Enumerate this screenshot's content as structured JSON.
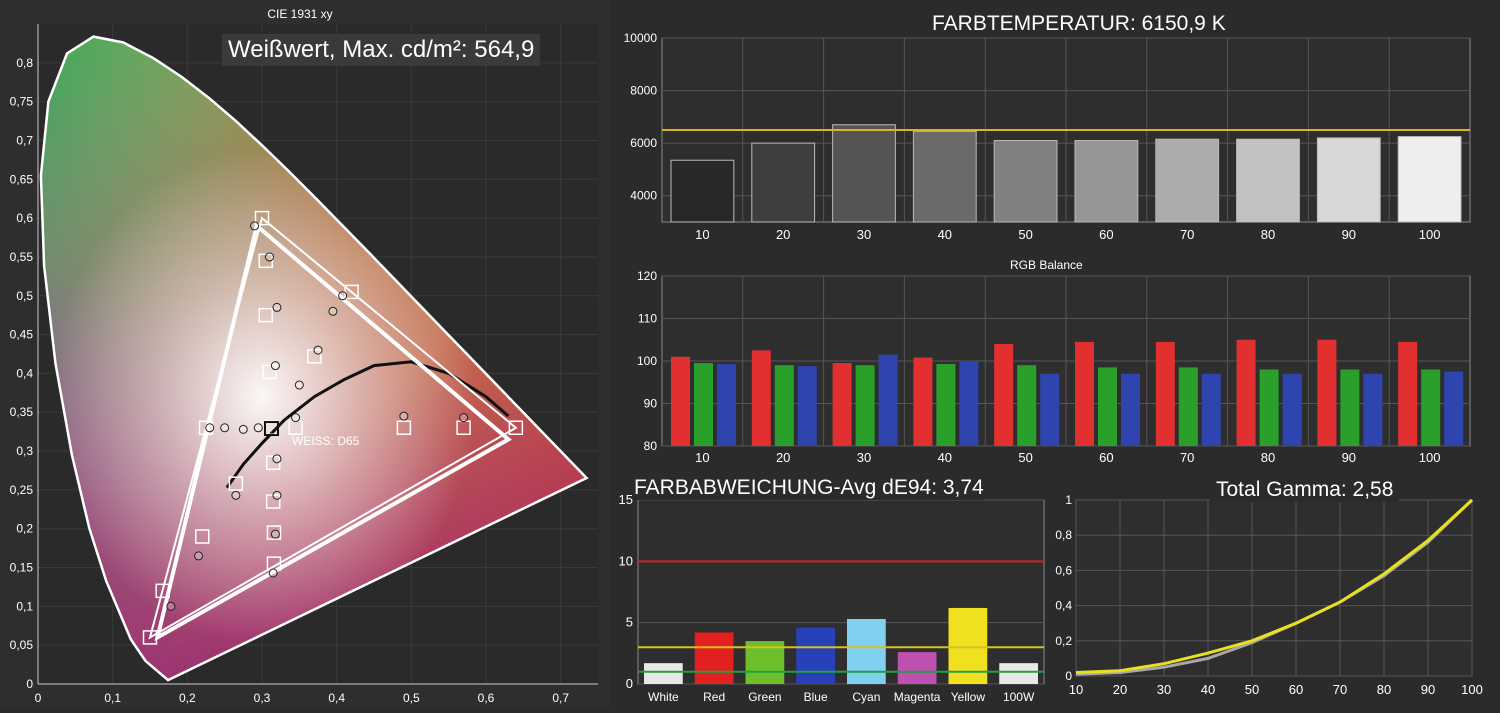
{
  "chart_data": [
    {
      "type": "scatter",
      "title": "CIE 1931 xy",
      "headline": "Weißwert, Max. cd/m²: 564,9",
      "white_label": "WEISS: D65",
      "xlim": [
        0,
        0.75
      ],
      "ylim": [
        0,
        0.85
      ],
      "x_ticks": [
        "0",
        "0,1",
        "0,2",
        "0,3",
        "0,4",
        "0,5",
        "0,6",
        "0,7"
      ],
      "y_ticks": [
        "0",
        "0,05",
        "0,1",
        "0,15",
        "0,2",
        "0,25",
        "0,3",
        "0,35",
        "0,4",
        "0,45",
        "0,5",
        "0,55",
        "0,6",
        "0,65",
        "0,7",
        "0,75",
        "0,8"
      ],
      "target_gamut": [
        [
          0.64,
          0.33
        ],
        [
          0.3,
          0.6
        ],
        [
          0.15,
          0.06
        ]
      ],
      "measured_gamut": [
        [
          0.63,
          0.315
        ],
        [
          0.293,
          0.59
        ],
        [
          0.16,
          0.06
        ]
      ],
      "white_point": [
        0.3127,
        0.329
      ],
      "targets": [
        [
          0.64,
          0.33
        ],
        [
          0.3,
          0.6
        ],
        [
          0.15,
          0.06
        ],
        [
          0.225,
          0.33
        ],
        [
          0.313,
          0.33
        ],
        [
          0.42,
          0.505
        ],
        [
          0.167,
          0.12
        ],
        [
          0.22,
          0.19
        ],
        [
          0.265,
          0.258
        ],
        [
          0.305,
          0.545
        ],
        [
          0.305,
          0.475
        ],
        [
          0.31,
          0.402
        ],
        [
          0.37,
          0.422
        ],
        [
          0.345,
          0.33
        ],
        [
          0.49,
          0.33
        ],
        [
          0.57,
          0.33
        ],
        [
          0.315,
          0.285
        ],
        [
          0.315,
          0.235
        ],
        [
          0.316,
          0.195
        ],
        [
          0.316,
          0.155
        ]
      ],
      "measurements": [
        [
          0.29,
          0.59
        ],
        [
          0.32,
          0.485
        ],
        [
          0.31,
          0.55
        ],
        [
          0.318,
          0.41
        ],
        [
          0.35,
          0.385
        ],
        [
          0.375,
          0.43
        ],
        [
          0.395,
          0.48
        ],
        [
          0.408,
          0.5
        ],
        [
          0.25,
          0.33
        ],
        [
          0.275,
          0.328
        ],
        [
          0.295,
          0.33
        ],
        [
          0.23,
          0.33
        ],
        [
          0.345,
          0.343
        ],
        [
          0.49,
          0.345
        ],
        [
          0.57,
          0.343
        ],
        [
          0.32,
          0.29
        ],
        [
          0.32,
          0.243
        ],
        [
          0.318,
          0.193
        ],
        [
          0.315,
          0.143
        ],
        [
          0.265,
          0.243
        ],
        [
          0.215,
          0.165
        ],
        [
          0.178,
          0.1
        ]
      ],
      "planckian_locus": [
        [
          0.253,
          0.253
        ],
        [
          0.275,
          0.283
        ],
        [
          0.3,
          0.31
        ],
        [
          0.33,
          0.34
        ],
        [
          0.37,
          0.37
        ],
        [
          0.41,
          0.392
        ],
        [
          0.45,
          0.41
        ],
        [
          0.5,
          0.415
        ],
        [
          0.55,
          0.4
        ],
        [
          0.6,
          0.37
        ],
        [
          0.63,
          0.345
        ]
      ]
    },
    {
      "type": "bar",
      "title": "FARBTEMPERATUR: 6150,9 K",
      "categories": [
        "10",
        "20",
        "30",
        "40",
        "50",
        "60",
        "70",
        "80",
        "90",
        "100"
      ],
      "values": [
        5350,
        6000,
        6700,
        6450,
        6100,
        6100,
        6150,
        6150,
        6200,
        6250
      ],
      "reference_line": 6500,
      "ylim": [
        3000,
        10000
      ],
      "y_ticks": [
        "4000",
        "6000",
        "8000",
        "10000"
      ],
      "colors": {
        "reference": "#e0b020"
      }
    },
    {
      "type": "bar",
      "title": "RGB Balance",
      "categories": [
        "10",
        "20",
        "30",
        "40",
        "50",
        "60",
        "70",
        "80",
        "90",
        "100"
      ],
      "series": [
        {
          "values": [
            101,
            102.5,
            99.5,
            100.8,
            104,
            104.5,
            104.5,
            105,
            105,
            104.5
          ],
          "color": "#e23030"
        },
        {
          "values": [
            99.5,
            99,
            99,
            99.3,
            99,
            98.5,
            98.5,
            98,
            98,
            98
          ],
          "color": "#2aa02a"
        },
        {
          "values": [
            99.3,
            98.8,
            101.5,
            100,
            97,
            97,
            97,
            97,
            97,
            97.5
          ],
          "color": "#2e45b0"
        }
      ],
      "ylim": [
        80,
        120
      ],
      "y_ticks": [
        "80",
        "90",
        "100",
        "110",
        "120"
      ]
    },
    {
      "type": "bar",
      "title": "FARBABWEICHUNG-Avg dE94: 3,74",
      "categories": [
        "White",
        "Red",
        "Green",
        "Blue",
        "Cyan",
        "Magenta",
        "Yellow",
        "100W"
      ],
      "values": [
        1.7,
        4.2,
        3.5,
        4.6,
        5.3,
        2.6,
        6.2,
        1.7
      ],
      "colors": [
        "#e8e8e8",
        "#e22020",
        "#6cbf2a",
        "#2840b8",
        "#80d0f0",
        "#c050b0",
        "#f0e020",
        "#e8e8e8"
      ],
      "reference_lines": [
        {
          "value": 10,
          "color": "#d02020"
        },
        {
          "value": 3,
          "color": "#d8c020"
        },
        {
          "value": 1,
          "color": "#20a040"
        }
      ],
      "ylim": [
        0,
        15
      ],
      "y_ticks": [
        "0",
        "5",
        "10",
        "15"
      ]
    },
    {
      "type": "line",
      "title": "Total Gamma: 2,58",
      "x_ticks": [
        "10",
        "20",
        "30",
        "40",
        "50",
        "60",
        "70",
        "80",
        "90",
        "100"
      ],
      "y_ticks": [
        "0",
        "0,2",
        "0,4",
        "0,6",
        "0,8",
        "1"
      ],
      "xlim": [
        10,
        100
      ],
      "ylim": [
        0,
        1
      ],
      "series": [
        {
          "x": [
            10,
            20,
            30,
            40,
            50,
            60,
            70,
            80,
            90,
            100
          ],
          "y": [
            0.02,
            0.03,
            0.07,
            0.13,
            0.2,
            0.3,
            0.42,
            0.58,
            0.77,
            1
          ],
          "color": "#e8e020"
        },
        {
          "x": [
            10,
            20,
            30,
            40,
            50,
            60,
            70,
            80,
            90,
            100
          ],
          "y": [
            0.01,
            0.02,
            0.05,
            0.1,
            0.19,
            0.3,
            0.42,
            0.57,
            0.76,
            1
          ],
          "color": "#a8a8a8"
        }
      ]
    }
  ]
}
